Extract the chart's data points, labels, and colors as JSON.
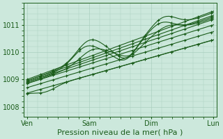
{
  "title": "",
  "xlabel": "Pression niveau de la mer( hPa )",
  "xtick_labels": [
    "Ven",
    "Sam",
    "Dim",
    "Lun"
  ],
  "xtick_positions": [
    0,
    1,
    2,
    3
  ],
  "ytick_labels": [
    "1008",
    "1009",
    "1010",
    "1011"
  ],
  "ytick_positions": [
    1008,
    1009,
    1010,
    1011
  ],
  "ylim": [
    1007.65,
    1011.8
  ],
  "xlim": [
    -0.05,
    3.05
  ],
  "bg_color": "#cce8dc",
  "grid_color": "#aacfbf",
  "line_color": "#1a5c1a",
  "marker": "+",
  "figsize": [
    3.2,
    2.0
  ],
  "dpi": 100
}
